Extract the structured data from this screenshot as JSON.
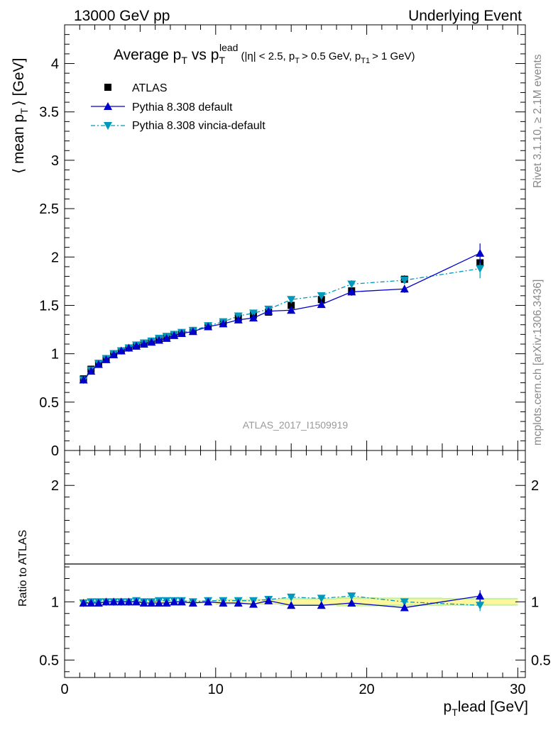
{
  "header": {
    "left": "13000 GeV pp",
    "right": "Underlying Event"
  },
  "side": {
    "rivet": "Rivet 3.1.10, ≥ 2.1M events",
    "mcplots": "mcplots.cern.ch [arXiv:1306.3436]"
  },
  "title": {
    "main": "Average p",
    "main_sub": "T",
    "vs": "vs p",
    "vs_sub": "T",
    "vs_sup": "lead",
    "cuts": "(|η| < 2.5, p",
    "cuts_sub1": "T",
    "cuts_mid": "> 0.5 GeV, p",
    "cuts_sub2": "T1",
    "cuts_end": "> 1 GeV)"
  },
  "watermark": "ATLAS_2017_I1509919",
  "chart_data": {
    "type": "scatter",
    "xlim": [
      0,
      30.5
    ],
    "xticks": [
      "0",
      "10",
      "20",
      "30"
    ],
    "xlabel": "p",
    "xlabel_sub": "T",
    "xlabel_rest": "lead [GeV]",
    "ylabel": "⟨ mean p",
    "ylabel_sub": "T",
    "ylabel_rest": "⟩ [GeV]",
    "ylim": [
      0,
      4.4
    ],
    "yticks": [
      "0",
      "0.5",
      "1",
      "1.5",
      "2",
      "2.5",
      "3",
      "3.5",
      "4"
    ],
    "ratio": {
      "ylabel": "Ratio to ATLAS",
      "ylim": [
        0.35,
        2.3
      ],
      "yticks": [
        "0.5",
        "1",
        "2"
      ]
    },
    "legend_position": "top-left",
    "colors": {
      "data": "#000000",
      "default": "#0000cc",
      "vincia": "#0099bb",
      "band_inner": "#fff59a",
      "band_outer": "#c8f09a"
    },
    "series": [
      {
        "name": "ATLAS",
        "x": [
          1.25,
          1.75,
          2.25,
          2.75,
          3.25,
          3.75,
          4.25,
          4.75,
          5.25,
          5.75,
          6.25,
          6.75,
          7.25,
          7.75,
          8.5,
          9.5,
          10.5,
          11.5,
          12.5,
          13.5,
          15,
          17,
          19,
          22.5,
          27.5
        ],
        "y": [
          0.74,
          0.84,
          0.9,
          0.95,
          1.0,
          1.03,
          1.06,
          1.08,
          1.11,
          1.13,
          1.15,
          1.17,
          1.19,
          1.21,
          1.24,
          1.28,
          1.32,
          1.37,
          1.4,
          1.43,
          1.5,
          1.56,
          1.65,
          1.77,
          1.94
        ],
        "err": [
          0.01,
          0.01,
          0.01,
          0.01,
          0.01,
          0.01,
          0.01,
          0.01,
          0.01,
          0.01,
          0.01,
          0.01,
          0.01,
          0.01,
          0.01,
          0.01,
          0.02,
          0.02,
          0.02,
          0.02,
          0.03,
          0.03,
          0.04,
          0.04,
          0.04
        ]
      },
      {
        "name": "Pythia 8.308 default",
        "x": [
          1.25,
          1.75,
          2.25,
          2.75,
          3.25,
          3.75,
          4.25,
          4.75,
          5.25,
          5.75,
          6.25,
          6.75,
          7.25,
          7.75,
          8.5,
          9.5,
          10.5,
          11.5,
          12.5,
          13.5,
          15,
          17,
          19,
          22.5,
          27.5
        ],
        "y": [
          0.73,
          0.82,
          0.89,
          0.94,
          0.99,
          1.03,
          1.06,
          1.08,
          1.1,
          1.12,
          1.14,
          1.16,
          1.19,
          1.21,
          1.23,
          1.28,
          1.31,
          1.35,
          1.37,
          1.44,
          1.45,
          1.51,
          1.64,
          1.67,
          2.04
        ],
        "err": [
          0.005,
          0.005,
          0.005,
          0.005,
          0.005,
          0.005,
          0.005,
          0.005,
          0.005,
          0.005,
          0.006,
          0.006,
          0.007,
          0.008,
          0.008,
          0.01,
          0.012,
          0.015,
          0.018,
          0.02,
          0.025,
          0.03,
          0.04,
          0.04,
          0.1
        ],
        "ratio": [
          0.99,
          0.99,
          0.99,
          1.0,
          1.0,
          1.0,
          1.0,
          1.0,
          0.99,
          0.99,
          0.99,
          0.99,
          1.0,
          1.0,
          0.99,
          1.0,
          0.99,
          0.99,
          0.98,
          1.01,
          0.97,
          0.97,
          0.99,
          0.95,
          1.05
        ],
        "ratio_err": [
          0.005,
          0.005,
          0.005,
          0.005,
          0.005,
          0.005,
          0.005,
          0.005,
          0.005,
          0.005,
          0.006,
          0.006,
          0.007,
          0.008,
          0.008,
          0.01,
          0.01,
          0.012,
          0.015,
          0.015,
          0.02,
          0.02,
          0.025,
          0.025,
          0.05
        ]
      },
      {
        "name": "Pythia 8.308 vincia-default",
        "x": [
          1.25,
          1.75,
          2.25,
          2.75,
          3.25,
          3.75,
          4.25,
          4.75,
          5.25,
          5.75,
          6.25,
          6.75,
          7.25,
          7.75,
          8.5,
          9.5,
          10.5,
          11.5,
          12.5,
          13.5,
          15,
          17,
          19,
          22.5,
          27.5
        ],
        "y": [
          0.73,
          0.83,
          0.9,
          0.95,
          1.0,
          1.03,
          1.06,
          1.09,
          1.11,
          1.13,
          1.16,
          1.18,
          1.2,
          1.22,
          1.24,
          1.29,
          1.33,
          1.39,
          1.42,
          1.46,
          1.56,
          1.6,
          1.72,
          1.76,
          1.88
        ],
        "err": [
          0.005,
          0.005,
          0.005,
          0.005,
          0.005,
          0.005,
          0.005,
          0.005,
          0.005,
          0.005,
          0.006,
          0.006,
          0.007,
          0.008,
          0.008,
          0.01,
          0.012,
          0.015,
          0.018,
          0.02,
          0.025,
          0.03,
          0.04,
          0.04,
          0.1
        ],
        "ratio": [
          0.99,
          1.0,
          1.0,
          1.0,
          1.0,
          1.0,
          1.0,
          1.01,
          1.0,
          1.0,
          1.01,
          1.01,
          1.01,
          1.01,
          1.0,
          1.01,
          1.01,
          1.01,
          1.01,
          1.02,
          1.04,
          1.03,
          1.05,
          1.0,
          0.97
        ],
        "ratio_err": [
          0.005,
          0.005,
          0.005,
          0.005,
          0.005,
          0.005,
          0.005,
          0.005,
          0.005,
          0.005,
          0.006,
          0.006,
          0.007,
          0.008,
          0.008,
          0.01,
          0.01,
          0.012,
          0.015,
          0.015,
          0.02,
          0.02,
          0.025,
          0.025,
          0.05
        ]
      }
    ]
  }
}
